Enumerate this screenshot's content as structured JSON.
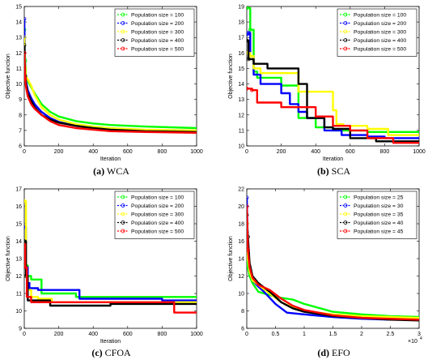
{
  "chart_data": [
    {
      "type": "line",
      "caption_letter": "(a)",
      "caption_name": "WCA",
      "xlabel": "Iteration",
      "ylabel": "Objective function",
      "xlim": [
        0,
        1000
      ],
      "ylim": [
        6,
        15
      ],
      "xticks": [
        0,
        200,
        400,
        600,
        800,
        1000
      ],
      "yticks": [
        6,
        7,
        8,
        9,
        10,
        11,
        12,
        13,
        14,
        15
      ],
      "legend_position": "top-right",
      "series": [
        {
          "name": "Population size = 100",
          "color": "#00ff00",
          "x": [
            0,
            5,
            10,
            20,
            40,
            60,
            100,
            150,
            200,
            300,
            400,
            500,
            700,
            1000
          ],
          "y": [
            13.5,
            11.5,
            10.5,
            10.2,
            9.8,
            9.4,
            8.7,
            8.2,
            7.9,
            7.6,
            7.45,
            7.35,
            7.25,
            7.15
          ]
        },
        {
          "name": "Population size = 200",
          "color": "#0000ff",
          "x": [
            0,
            5,
            10,
            20,
            40,
            60,
            100,
            150,
            200,
            300,
            400,
            500,
            700,
            1000
          ],
          "y": [
            14.2,
            11.0,
            10.2,
            9.6,
            9.1,
            8.7,
            8.2,
            7.8,
            7.55,
            7.3,
            7.15,
            7.05,
            7.0,
            6.95
          ]
        },
        {
          "name": "Population size = 300",
          "color": "#ffff00",
          "x": [
            0,
            5,
            10,
            20,
            40,
            60,
            100,
            150,
            200,
            300,
            400,
            500,
            700,
            1000
          ],
          "y": [
            13.0,
            11.0,
            10.5,
            10.3,
            9.9,
            9.3,
            8.5,
            8.0,
            7.7,
            7.4,
            7.25,
            7.15,
            7.05,
            7.0
          ]
        },
        {
          "name": "Population size = 400",
          "color": "#000000",
          "x": [
            0,
            5,
            10,
            20,
            40,
            60,
            100,
            150,
            200,
            300,
            400,
            500,
            700,
            1000
          ],
          "y": [
            12.5,
            10.5,
            10.0,
            9.4,
            8.9,
            8.5,
            8.0,
            7.7,
            7.5,
            7.3,
            7.15,
            7.05,
            6.95,
            6.9
          ]
        },
        {
          "name": "Population size = 500",
          "color": "#ff0000",
          "x": [
            0,
            5,
            10,
            20,
            40,
            60,
            100,
            150,
            200,
            300,
            400,
            500,
            700,
            1000
          ],
          "y": [
            12.0,
            10.3,
            9.8,
            9.2,
            8.7,
            8.4,
            8.0,
            7.6,
            7.35,
            7.15,
            7.05,
            6.95,
            6.9,
            6.85
          ]
        }
      ]
    },
    {
      "type": "line",
      "caption_letter": "(b)",
      "caption_name": "SCA",
      "xlabel": "Iteration",
      "ylabel": "Objective function",
      "xlim": [
        0,
        1000
      ],
      "ylim": [
        10,
        19
      ],
      "xticks": [
        0,
        200,
        400,
        600,
        800,
        1000
      ],
      "yticks": [
        10,
        11,
        12,
        13,
        14,
        15,
        16,
        17,
        18,
        19
      ],
      "legend_position": "top-right",
      "series": [
        {
          "name": "Population size = 100",
          "color": "#00ff00",
          "step": true,
          "x": [
            0,
            20,
            40,
            60,
            100,
            200,
            300,
            400,
            500,
            600,
            700,
            800,
            1000
          ],
          "y": [
            18.9,
            17.5,
            14.8,
            14.4,
            14.4,
            13.9,
            11.8,
            11.2,
            11.0,
            11.0,
            10.9,
            10.9,
            10.9
          ]
        },
        {
          "name": "Population size = 200",
          "color": "#0000ff",
          "step": true,
          "x": [
            0,
            10,
            20,
            40,
            80,
            200,
            250,
            300,
            350,
            450,
            550,
            700,
            800,
            1000
          ],
          "y": [
            17.2,
            17.3,
            15.8,
            14.6,
            14.0,
            13.4,
            12.7,
            12.2,
            11.8,
            11.0,
            10.7,
            10.6,
            10.5,
            10.5
          ]
        },
        {
          "name": "Population size = 300",
          "color": "#ffff00",
          "step": true,
          "x": [
            0,
            20,
            40,
            80,
            200,
            300,
            500,
            520,
            560,
            600,
            700,
            820,
            1000
          ],
          "y": [
            16.0,
            15.8,
            15.0,
            14.7,
            14.7,
            13.5,
            12.3,
            11.4,
            11.3,
            11.3,
            11.1,
            10.7,
            10.7
          ]
        },
        {
          "name": "Population size = 400",
          "color": "#000000",
          "step": true,
          "x": [
            0,
            10,
            40,
            120,
            300,
            350,
            400,
            450,
            500,
            600,
            750,
            800,
            1000
          ],
          "y": [
            16.8,
            15.6,
            15.3,
            15.0,
            14.0,
            11.8,
            11.8,
            11.2,
            11.1,
            10.5,
            10.3,
            10.3,
            10.3
          ]
        },
        {
          "name": "Population size = 500",
          "color": "#ff0000",
          "step": true,
          "x": [
            0,
            30,
            60,
            100,
            200,
            250,
            400,
            500,
            600,
            700,
            850,
            1000
          ],
          "y": [
            13.7,
            13.6,
            12.8,
            12.8,
            12.5,
            12.5,
            11.9,
            11.3,
            11.0,
            10.5,
            10.2,
            10.2
          ]
        }
      ]
    },
    {
      "type": "line",
      "caption_letter": "(c)",
      "caption_name": "CFOA",
      "xlabel": "Iteration",
      "ylabel": "Objective function",
      "xlim": [
        0,
        1000
      ],
      "ylim": [
        9,
        17
      ],
      "xticks": [
        0,
        200,
        400,
        600,
        800,
        1000
      ],
      "yticks": [
        9,
        10,
        11,
        12,
        13,
        14,
        15,
        16,
        17
      ],
      "legend_position": "top-right",
      "series": [
        {
          "name": "Population size = 100",
          "color": "#00ff00",
          "step": true,
          "x": [
            0,
            10,
            20,
            40,
            100,
            300,
            500,
            1000
          ],
          "y": [
            14.0,
            12.6,
            12.0,
            11.8,
            11.0,
            10.8,
            10.8,
            10.8
          ]
        },
        {
          "name": "Population size = 200",
          "color": "#0000ff",
          "step": true,
          "x": [
            0,
            10,
            20,
            30,
            80,
            320,
            800,
            1000
          ],
          "y": [
            14.8,
            12.5,
            11.6,
            11.3,
            11.2,
            10.7,
            10.6,
            10.6
          ]
        },
        {
          "name": "Population size = 300",
          "color": "#ffff00",
          "step": true,
          "x": [
            0,
            10,
            20,
            40,
            80,
            160,
            300,
            1000
          ],
          "y": [
            16.3,
            12.0,
            11.2,
            10.8,
            10.7,
            10.5,
            10.5,
            10.5
          ]
        },
        {
          "name": "Population size = 400",
          "color": "#000000",
          "step": true,
          "x": [
            0,
            10,
            20,
            150,
            240,
            500,
            800,
            1000
          ],
          "y": [
            14.0,
            12.0,
            10.6,
            10.3,
            10.3,
            10.4,
            10.4,
            10.4
          ]
        },
        {
          "name": "Population size = 500",
          "color": "#ff0000",
          "step": true,
          "x": [
            0,
            5,
            15,
            40,
            200,
            870,
            1000
          ],
          "y": [
            13.8,
            12.5,
            10.8,
            10.5,
            10.5,
            9.9,
            9.9
          ]
        }
      ]
    },
    {
      "type": "line",
      "caption_letter": "(d)",
      "caption_name": "EFO",
      "xlabel": "",
      "ylabel": "Objective function",
      "xlim": [
        0,
        3
      ],
      "ylim": [
        6,
        22
      ],
      "xticks": [
        0,
        0.5,
        1,
        1.5,
        2,
        2.5,
        3
      ],
      "yticks": [
        6,
        8,
        10,
        12,
        14,
        16,
        18,
        20,
        22
      ],
      "x_multiplier": "×10",
      "x_multiplier_exp": "4",
      "legend_position": "top-right",
      "series": [
        {
          "name": "Population size = 25",
          "color": "#00ff00",
          "x": [
            0,
            0.02,
            0.05,
            0.1,
            0.2,
            0.4,
            0.6,
            0.8,
            1.0,
            1.5,
            2.0,
            2.5,
            3.0
          ],
          "y": [
            17,
            13,
            12,
            11.2,
            10.2,
            9.8,
            9.5,
            9.3,
            8.8,
            7.9,
            7.6,
            7.4,
            7.3
          ]
        },
        {
          "name": "Population size = 30",
          "color": "#0000ff",
          "x": [
            0,
            0.02,
            0.05,
            0.1,
            0.2,
            0.3,
            0.5,
            0.7,
            1.0,
            1.5,
            2.0,
            2.5,
            3.0
          ],
          "y": [
            21,
            15,
            12.5,
            11.5,
            10.8,
            10.2,
            8.8,
            7.8,
            7.6,
            7.3,
            7.1,
            7.0,
            7.0
          ]
        },
        {
          "name": "Population size = 35",
          "color": "#ffff00",
          "x": [
            0,
            0.02,
            0.05,
            0.1,
            0.2,
            0.4,
            0.6,
            0.8,
            1.0,
            1.5,
            2.0,
            2.5,
            3.0
          ],
          "y": [
            18,
            14,
            12.5,
            11.5,
            11.0,
            10.0,
            9.0,
            8.4,
            8.0,
            7.6,
            7.4,
            7.3,
            7.2
          ]
        },
        {
          "name": "Population size = 40",
          "color": "#000000",
          "x": [
            0,
            0.02,
            0.05,
            0.1,
            0.2,
            0.4,
            0.6,
            0.8,
            1.0,
            1.5,
            2.0,
            2.5,
            3.0
          ],
          "y": [
            19,
            16.5,
            13.5,
            12.0,
            11.2,
            10.2,
            9.0,
            8.3,
            7.9,
            7.4,
            7.2,
            7.0,
            6.9
          ]
        },
        {
          "name": "Population size = 45",
          "color": "#ff0000",
          "x": [
            0,
            0.02,
            0.05,
            0.1,
            0.2,
            0.4,
            0.6,
            0.8,
            1.0,
            1.5,
            2.0,
            2.5,
            3.0
          ],
          "y": [
            20,
            15,
            13.0,
            11.8,
            11.0,
            10.4,
            9.4,
            8.6,
            8.1,
            7.5,
            7.2,
            7.1,
            7.0
          ]
        }
      ]
    }
  ]
}
